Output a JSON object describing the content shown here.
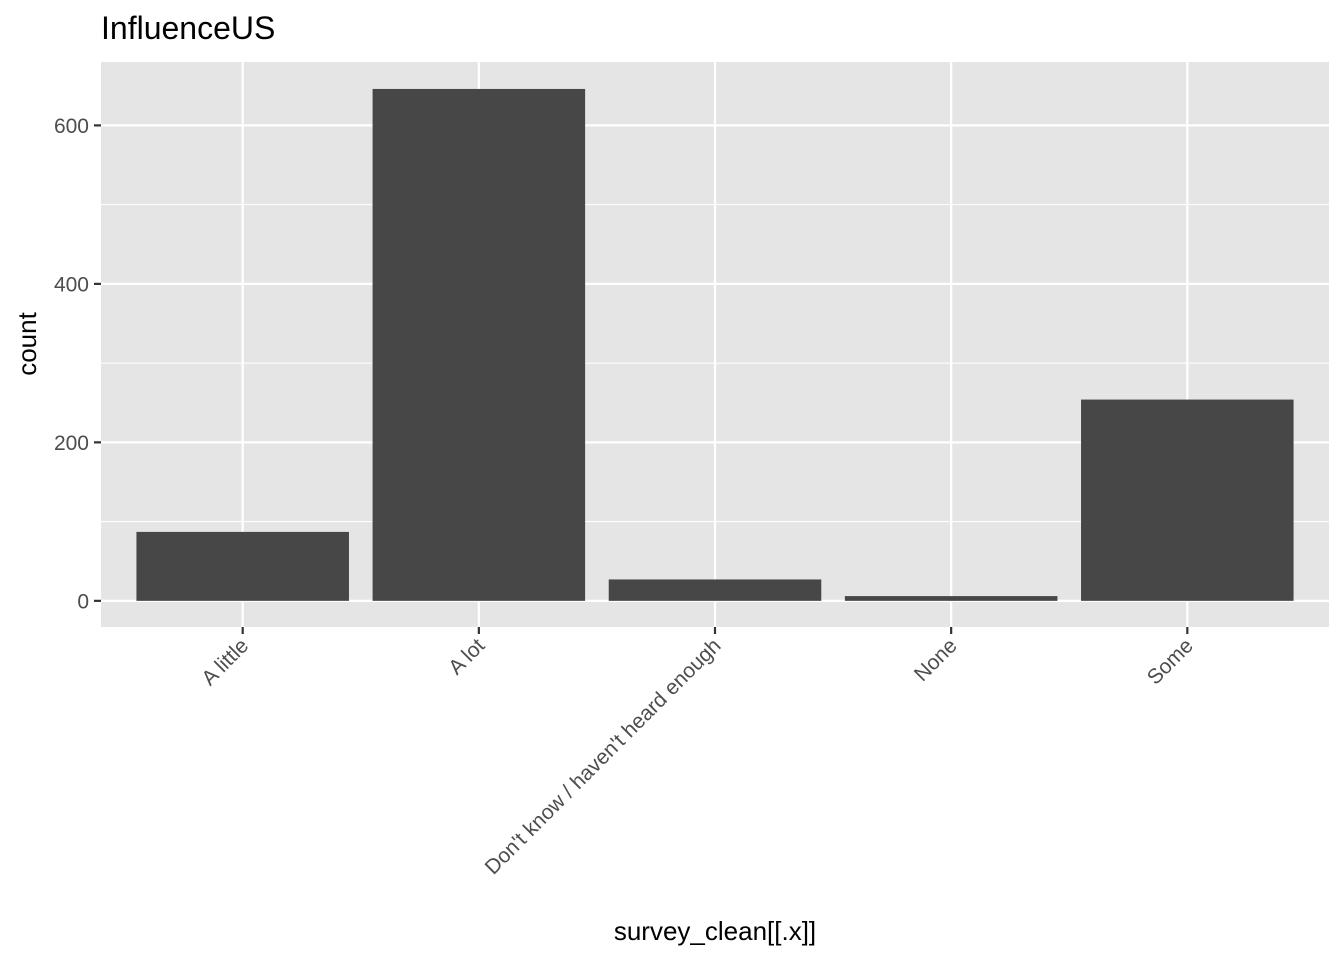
{
  "chart_data": {
    "type": "bar",
    "title": "InfluenceUS",
    "xlabel": "survey_clean[[.x]]",
    "ylabel": "count",
    "categories": [
      "A little",
      "A lot",
      "Don't know / haven't heard enough",
      "None",
      "Some"
    ],
    "values": [
      87,
      646,
      27,
      6,
      254
    ],
    "ylim": [
      -33,
      680
    ],
    "yticks": [
      0,
      200,
      400,
      600
    ],
    "grid": true,
    "legend": "none",
    "colors": {
      "panel_background": "#e5e5e5",
      "grid": "#ffffff",
      "bar_fill": "#474747",
      "tick": "#333333",
      "tick_label": "#4d4d4d"
    }
  }
}
